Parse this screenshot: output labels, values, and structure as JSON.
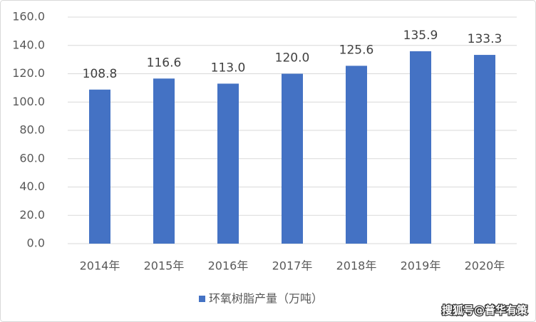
{
  "chart_data": {
    "type": "bar",
    "categories": [
      "2014年",
      "2015年",
      "2016年",
      "2017年",
      "2018年",
      "2019年",
      "2020年"
    ],
    "series": [
      {
        "name": "环氧树脂产量（万吨）",
        "color": "#4472c4",
        "values": [
          108.8,
          116.6,
          113.0,
          120.0,
          125.6,
          135.9,
          133.3
        ],
        "value_labels": [
          "108.8",
          "116.6",
          "113.0",
          "120.0",
          "125.6",
          "135.9",
          "133.3"
        ]
      }
    ],
    "ylim": [
      0,
      160
    ],
    "yticks": [
      {
        "value": 0,
        "label": "0.0"
      },
      {
        "value": 20,
        "label": "20.0"
      },
      {
        "value": 40,
        "label": "40.0"
      },
      {
        "value": 60,
        "label": "60.0"
      },
      {
        "value": 80,
        "label": "80.0"
      },
      {
        "value": 100,
        "label": "100.0"
      },
      {
        "value": 120,
        "label": "120.0"
      },
      {
        "value": 140,
        "label": "140.0"
      },
      {
        "value": 160,
        "label": "160.0"
      }
    ],
    "grid": true,
    "legend": "bottom",
    "watermark": "搜狐号@普华有策"
  }
}
